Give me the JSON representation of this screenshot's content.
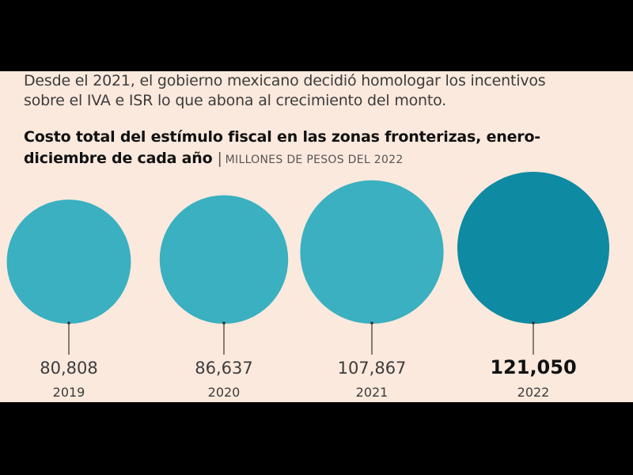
{
  "intro": {
    "line1": "Desde el 2021, el gobierno mexicano decidió homologar los incentivos",
    "line2": "sobre el IVA e ISR lo que abona al crecimiento del monto."
  },
  "title": {
    "line1": "Costo total del estímulo fiscal en las zonas fronterizas, enero-",
    "line2": "diciembre de cada año",
    "separator": "|",
    "units": "MILLONES DE PESOS DEL 2022"
  },
  "chart_data": {
    "type": "bubble",
    "title": "Costo total del estímulo fiscal en las zonas fronterizas, enero-diciembre de cada año",
    "units": "MILLONES DE PESOS DEL 2022",
    "categories": [
      "2019",
      "2020",
      "2021",
      "2022"
    ],
    "values": [
      80808,
      86637,
      107867,
      121050
    ],
    "value_labels": [
      "80,808",
      "86,637",
      "107,867",
      "121,050"
    ],
    "highlight_index": 3,
    "colors": {
      "default": "#3ab0c1",
      "highlight": "#0e8aa2",
      "background": "#fbe9dd",
      "frame": "#000000",
      "connector": "#333333",
      "text": "#3c3c3c"
    }
  }
}
